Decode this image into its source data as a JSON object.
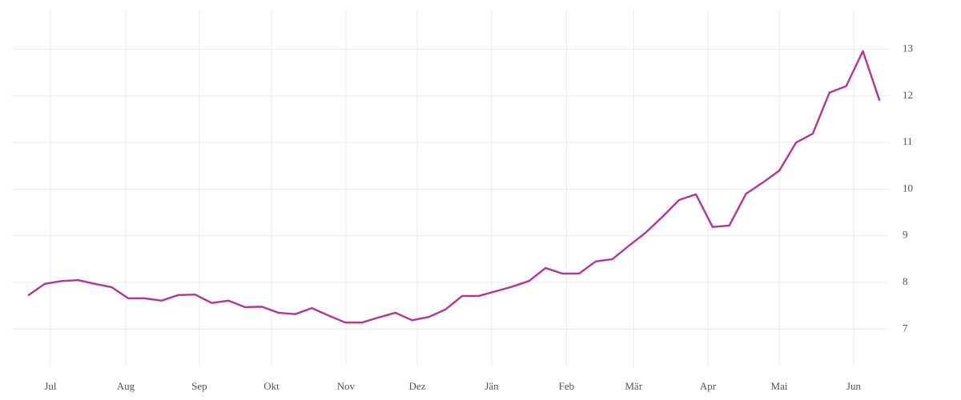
{
  "chart_data": {
    "type": "line",
    "x": [
      0,
      1,
      2,
      3,
      4,
      5,
      6,
      7,
      8,
      9,
      10,
      11,
      12,
      13,
      14,
      15,
      16,
      17,
      18,
      19,
      20,
      21,
      22,
      23,
      24,
      25,
      26,
      27,
      28,
      29,
      30,
      31,
      32,
      33,
      34,
      35,
      36,
      37,
      38,
      39,
      40,
      41,
      42,
      43,
      44,
      45,
      46,
      47,
      48,
      49,
      50,
      51
    ],
    "series": [
      {
        "color": "#b5358f",
        "values": [
          7.72,
          7.97,
          8.03,
          8.05,
          7.97,
          7.9,
          7.66,
          7.66,
          7.61,
          7.73,
          7.74,
          7.56,
          7.61,
          7.47,
          7.48,
          7.35,
          7.32,
          7.45,
          7.29,
          7.14,
          7.14,
          7.25,
          7.35,
          7.19,
          7.26,
          7.42,
          7.71,
          7.71,
          7.81,
          7.91,
          8.03,
          8.31,
          8.19,
          8.19,
          8.45,
          8.5,
          8.79,
          9.07,
          9.41,
          9.77,
          9.89,
          9.19,
          9.22,
          9.9,
          10.14,
          10.4,
          11.0,
          11.19,
          12.07,
          12.21,
          12.96,
          11.9
        ]
      }
    ],
    "xlim": [
      -0.96,
      51.56
    ],
    "xticks": [
      {
        "value": 1.34,
        "label": "Jul"
      },
      {
        "value": 5.85,
        "label": "Aug"
      },
      {
        "value": 10.26,
        "label": "Sep"
      },
      {
        "value": 14.58,
        "label": "Okt"
      },
      {
        "value": 19.04,
        "label": "Nov"
      },
      {
        "value": 23.31,
        "label": "Dez"
      },
      {
        "value": 27.77,
        "label": "Jän"
      },
      {
        "value": 32.25,
        "label": "Feb"
      },
      {
        "value": 36.27,
        "label": "Mär"
      },
      {
        "value": 40.72,
        "label": "Apr"
      },
      {
        "value": 44.99,
        "label": "Mai"
      },
      {
        "value": 49.45,
        "label": "Jun"
      }
    ],
    "ylim": [
      6.2,
      13.85
    ],
    "yticks": [
      7,
      8,
      9,
      10,
      11,
      12,
      13
    ],
    "grid": true
  }
}
